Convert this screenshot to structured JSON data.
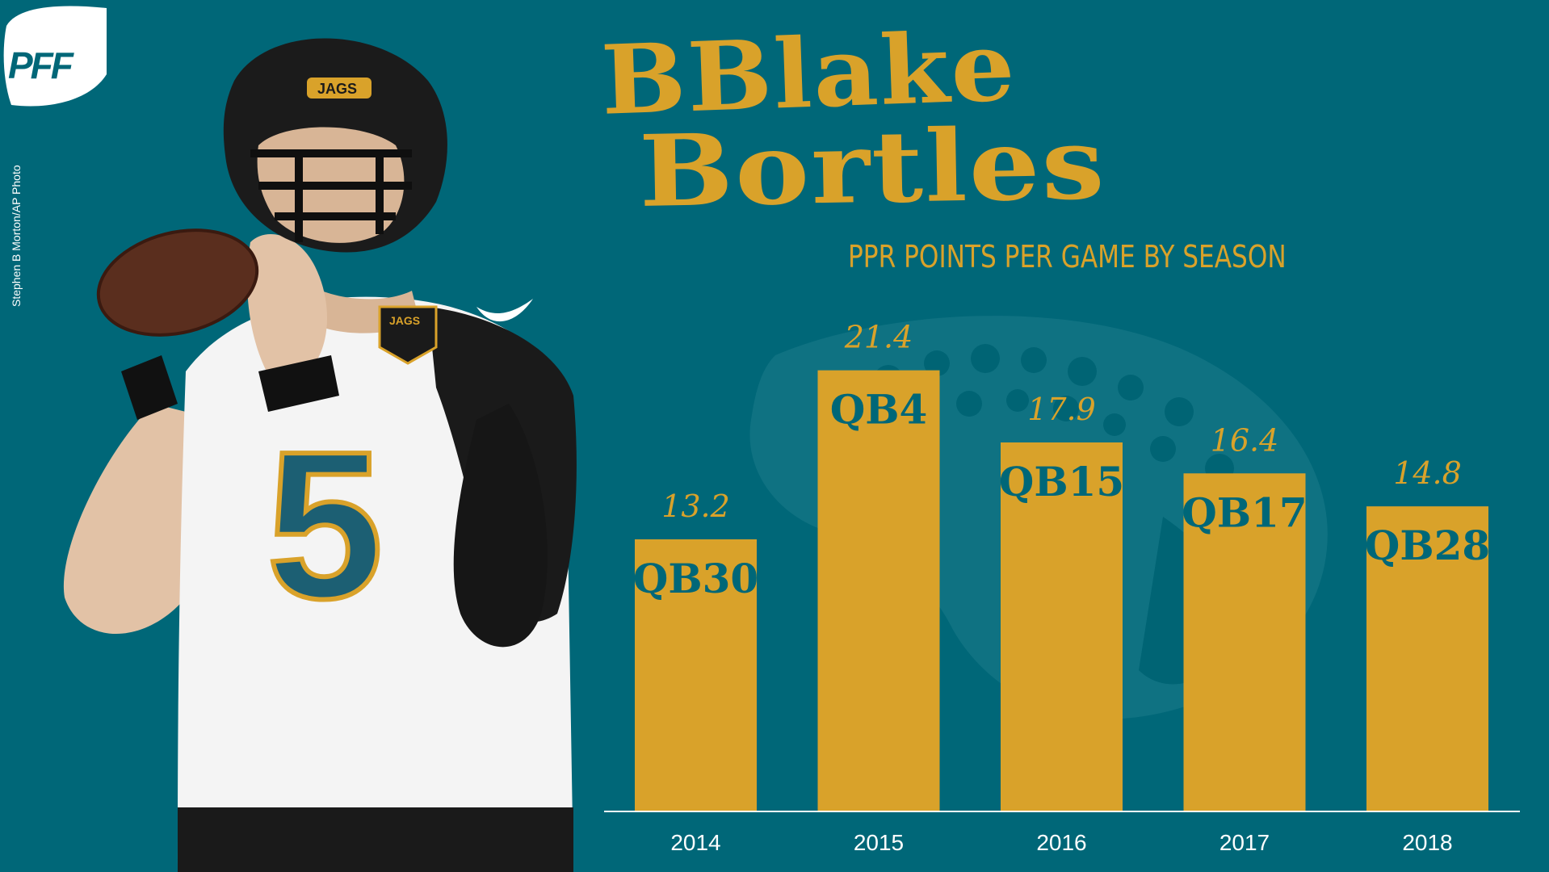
{
  "colors": {
    "background": "#006778",
    "bar": "#D9A22A",
    "title": "#D9A22A",
    "value_label": "#D9A22A",
    "rank_label": "#006778",
    "axis": "#ffffff",
    "year_label": "#ffffff",
    "photo_credit": "#ffffff",
    "logo_bg": "#ffffff",
    "logo_text": "#006778"
  },
  "logo": {
    "text": "PFF"
  },
  "photo_credit": "Stephen B Morton/AP Photo",
  "title": {
    "line1": "BBlake",
    "line2": "Bortles"
  },
  "subtitle": "PPR POINTS PER GAME BY SEASON",
  "player": {
    "jersey_number": "5",
    "helmet_text": "JAGS",
    "patch_text": "JAGS"
  },
  "chart_data": {
    "type": "bar",
    "title": "PPR POINTS PER GAME BY SEASON",
    "categories": [
      "2014",
      "2015",
      "2016",
      "2017",
      "2018"
    ],
    "values": [
      13.2,
      21.4,
      17.9,
      16.4,
      14.8
    ],
    "value_labels": [
      "13.2",
      "21.4",
      "17.9",
      "16.4",
      "14.8"
    ],
    "bar_labels": [
      "QB30",
      "QB4",
      "QB15",
      "QB17",
      "QB28"
    ],
    "xlabel": "",
    "ylabel": "",
    "ylim": [
      0,
      23.5
    ],
    "grid": false,
    "legend": "none"
  }
}
